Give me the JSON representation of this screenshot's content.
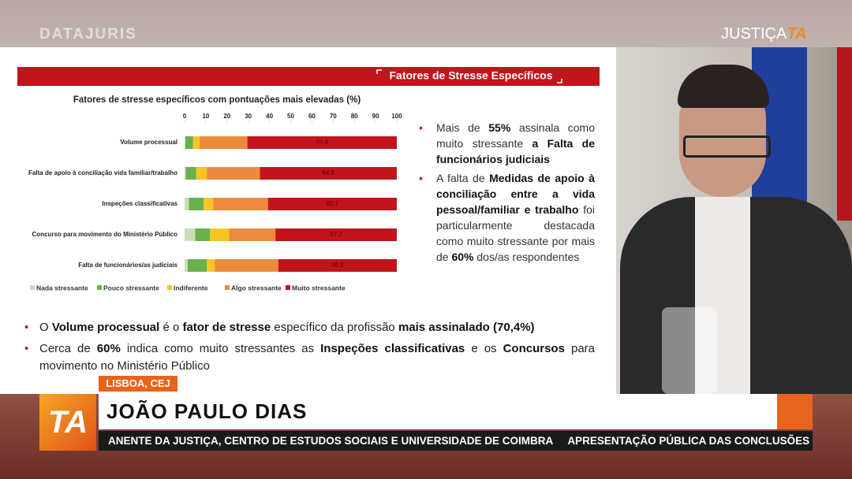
{
  "header": {
    "brand": "DATAJURIS",
    "channel": "JUSTIÇA",
    "channel_logo": "TA"
  },
  "slide": {
    "title": "Fatores de Stresse Específicos",
    "bullets_right": [
      [
        {
          "t": "Mais de "
        },
        {
          "t": "55%",
          "b": true
        },
        {
          "t": " assinala como muito stressante "
        },
        {
          "t": "a Falta de funcionários judiciais",
          "b": true
        }
      ],
      [
        {
          "t": "A falta de "
        },
        {
          "t": "Medidas de apoio à conciliação entre a vida pessoal/familiar e trabalho",
          "b": true
        },
        {
          "t": " foi particularmente destacada como muito stressante por mais de "
        },
        {
          "t": "60%",
          "b": true
        },
        {
          "t": " dos/as respondentes"
        }
      ]
    ],
    "bullets_bottom": [
      [
        {
          "t": "O "
        },
        {
          "t": "Volume processual",
          "b": true
        },
        {
          "t": " é o "
        },
        {
          "t": "fator de stresse",
          "b": true
        },
        {
          "t": " específico da profissão "
        },
        {
          "t": "mais assinalado (70,4%)",
          "b": true
        }
      ],
      [
        {
          "t": "Cerca de "
        },
        {
          "t": "60%",
          "b": true
        },
        {
          "t": " indica como muito stressantes as "
        },
        {
          "t": "Inspeções classificativas",
          "b": true
        },
        {
          "t": " e os "
        },
        {
          "t": "Concursos",
          "b": true
        },
        {
          "t": " para movimento no Ministério Público"
        }
      ]
    ]
  },
  "chart_data": {
    "type": "bar",
    "orientation": "horizontal",
    "stacked": true,
    "title": "Fatores de stresse específicos com pontuações mais elevadas (%)",
    "categories": [
      "Volume processual",
      "Falta de apoio à conciliação vida familiar/trabalho",
      "Inspeções classificativas",
      "Concurso para movimento do Ministério Público",
      "Falta de funcionários/as judiciais"
    ],
    "series": [
      {
        "name": "Nada stressante",
        "color": "#c9dfb4",
        "values": [
          0.4,
          0.5,
          2,
          5,
          1.5
        ]
      },
      {
        "name": "Pouco stressante",
        "color": "#6ab04c",
        "values": [
          3.6,
          5,
          7,
          7,
          9
        ]
      },
      {
        "name": "Indiferente",
        "color": "#f7c325",
        "values": [
          3,
          5,
          4.5,
          9,
          3.7
        ]
      },
      {
        "name": "Algo stressante",
        "color": "#ec8b3c",
        "values": [
          22.6,
          25,
          25.8,
          21.8,
          30
        ]
      },
      {
        "name": "Muito stressante",
        "color": "#c3141c",
        "values": [
          70.4,
          64.5,
          60.7,
          57.2,
          55.8
        ],
        "value_labels": [
          "70,4",
          "64,5",
          "60,7",
          "57,2",
          "55,8"
        ]
      }
    ],
    "xlim": [
      0,
      100
    ],
    "xticks": [
      0,
      10,
      20,
      30,
      40,
      50,
      60,
      70,
      80,
      90,
      100
    ],
    "legend": "bottom"
  },
  "lower_third": {
    "location": "LISBOA, CEJ",
    "logo": "TA",
    "name": "JOÃO PAULO DIAS",
    "ticker": [
      "ANENTE DA JUSTIÇA, CENTRO DE ESTUDOS SOCIAIS E UNIVERSIDADE DE COIMBRA",
      "APRESENTAÇÃO PÚBLICA DAS CONCLUSÕES D"
    ]
  }
}
